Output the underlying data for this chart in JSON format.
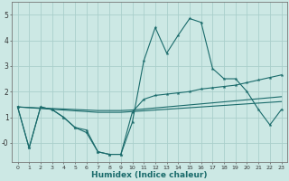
{
  "xlabel": "Humidex (Indice chaleur)",
  "xlim": [
    -0.5,
    23.5
  ],
  "ylim": [
    -0.75,
    5.5
  ],
  "xticks": [
    0,
    1,
    2,
    3,
    4,
    5,
    6,
    7,
    8,
    9,
    10,
    11,
    12,
    13,
    14,
    15,
    16,
    17,
    18,
    19,
    20,
    21,
    22,
    23
  ],
  "yticks": [
    -0.0,
    1.0,
    2.0,
    3.0,
    4.0,
    5.0
  ],
  "ytick_labels": [
    "-0",
    "1",
    "2",
    "3",
    "4",
    "5"
  ],
  "bg_color": "#cce8e4",
  "grid_color": "#aacfcb",
  "line_color": "#1a6b6b",
  "line1_x": [
    0,
    1,
    2,
    3,
    4,
    5,
    6,
    7,
    8,
    9,
    10,
    11,
    12,
    13,
    14,
    15,
    16,
    17,
    18,
    19,
    20,
    21,
    22,
    23
  ],
  "line1_y": [
    1.4,
    -0.2,
    1.4,
    1.3,
    1.0,
    0.6,
    0.5,
    -0.35,
    -0.45,
    -0.45,
    0.8,
    3.2,
    4.5,
    3.5,
    4.2,
    4.85,
    4.7,
    2.9,
    2.5,
    2.5,
    2.0,
    1.3,
    0.7,
    1.3
  ],
  "line2_x": [
    0,
    1,
    2,
    3,
    4,
    5,
    6,
    7,
    8,
    9,
    10,
    11,
    12,
    13,
    14,
    15,
    16,
    17,
    18,
    19,
    20,
    21,
    22,
    23
  ],
  "line2_y": [
    1.4,
    -0.2,
    1.4,
    1.3,
    1.0,
    0.6,
    0.4,
    -0.35,
    -0.45,
    -0.45,
    1.2,
    1.7,
    1.85,
    1.9,
    1.95,
    2.0,
    2.1,
    2.15,
    2.2,
    2.25,
    2.35,
    2.45,
    2.55,
    2.65
  ],
  "line3_x": [
    0,
    1,
    2,
    3,
    4,
    5,
    6,
    7,
    8,
    9,
    10,
    11,
    12,
    13,
    14,
    15,
    16,
    17,
    18,
    19,
    20,
    21,
    22,
    23
  ],
  "line3_y": [
    1.4,
    1.38,
    1.36,
    1.34,
    1.32,
    1.3,
    1.28,
    1.26,
    1.26,
    1.26,
    1.28,
    1.32,
    1.36,
    1.4,
    1.44,
    1.48,
    1.52,
    1.56,
    1.6,
    1.64,
    1.68,
    1.72,
    1.76,
    1.8
  ],
  "line4_x": [
    0,
    1,
    2,
    3,
    4,
    5,
    6,
    7,
    8,
    9,
    10,
    11,
    12,
    13,
    14,
    15,
    16,
    17,
    18,
    19,
    20,
    21,
    22,
    23
  ],
  "line4_y": [
    1.4,
    1.37,
    1.34,
    1.31,
    1.28,
    1.25,
    1.22,
    1.19,
    1.19,
    1.19,
    1.22,
    1.25,
    1.28,
    1.31,
    1.34,
    1.37,
    1.4,
    1.43,
    1.46,
    1.49,
    1.52,
    1.55,
    1.58,
    1.61
  ]
}
